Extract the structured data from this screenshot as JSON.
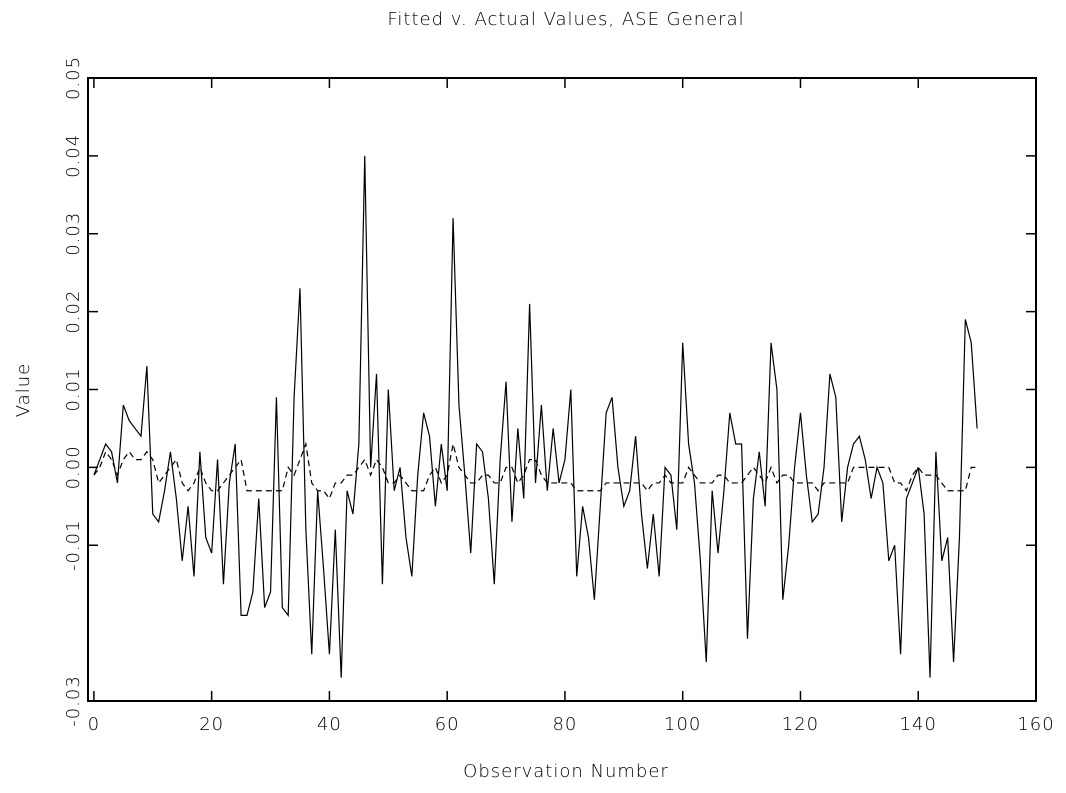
{
  "chart_data": {
    "type": "line",
    "title": "Fitted v. Actual Values, ASE General",
    "xlabel": "Observation Number",
    "ylabel": "Value",
    "x": [
      0,
      1,
      2,
      3,
      4,
      5,
      6,
      7,
      8,
      9,
      10,
      11,
      12,
      13,
      14,
      15,
      16,
      17,
      18,
      19,
      20,
      21,
      22,
      23,
      24,
      25,
      26,
      27,
      28,
      29,
      30,
      31,
      32,
      33,
      34,
      35,
      36,
      37,
      38,
      39,
      40,
      41,
      42,
      43,
      44,
      45,
      46,
      47,
      48,
      49,
      50,
      51,
      52,
      53,
      54,
      55,
      56,
      57,
      58,
      59,
      60,
      61,
      62,
      63,
      64,
      65,
      66,
      67,
      68,
      69,
      70,
      71,
      72,
      73,
      74,
      75,
      76,
      77,
      78,
      79,
      80,
      81,
      82,
      83,
      84,
      85,
      86,
      87,
      88,
      89,
      90,
      91,
      92,
      93,
      94,
      95,
      96,
      97,
      98,
      99,
      100,
      101,
      102,
      103,
      104,
      105,
      106,
      107,
      108,
      109,
      110,
      111,
      112,
      113,
      114,
      115,
      116,
      117,
      118,
      119,
      120,
      121,
      122,
      123,
      124,
      125,
      126,
      127,
      128,
      129,
      130,
      131,
      132,
      133,
      134,
      135,
      136,
      137,
      138,
      139,
      140,
      141,
      142,
      143,
      144,
      145,
      146,
      147,
      148,
      149,
      150
    ],
    "series": [
      {
        "color": "#000000",
        "dash": false,
        "values": [
          -0.001,
          0.001,
          0.003,
          0.002,
          -0.002,
          0.008,
          0.006,
          0.005,
          0.004,
          0.013,
          -0.006,
          -0.007,
          -0.003,
          0.002,
          -0.004,
          -0.012,
          -0.005,
          -0.014,
          0.002,
          -0.009,
          -0.011,
          0.001,
          -0.015,
          -0.002,
          0.003,
          -0.019,
          -0.019,
          -0.016,
          -0.004,
          -0.018,
          -0.016,
          0.009,
          -0.018,
          -0.019,
          0.009,
          0.023,
          -0.008,
          -0.024,
          -0.003,
          -0.013,
          -0.024,
          -0.008,
          -0.027,
          -0.003,
          -0.006,
          0.003,
          0.04,
          0.0,
          0.012,
          -0.015,
          0.01,
          -0.003,
          0.0,
          -0.009,
          -0.014,
          -0.001,
          0.007,
          0.004,
          -0.005,
          0.003,
          -0.003,
          0.032,
          0.008,
          -0.001,
          -0.011,
          0.003,
          0.002,
          -0.004,
          -0.015,
          0.001,
          0.011,
          -0.007,
          0.005,
          -0.004,
          0.021,
          -0.002,
          0.008,
          -0.003,
          0.005,
          -0.002,
          0.001,
          0.01,
          -0.014,
          -0.005,
          -0.009,
          -0.017,
          -0.005,
          0.007,
          0.009,
          0.0,
          -0.005,
          -0.003,
          0.004,
          -0.006,
          -0.013,
          -0.006,
          -0.014,
          0.0,
          -0.001,
          -0.008,
          0.016,
          0.003,
          -0.002,
          -0.012,
          -0.025,
          -0.003,
          -0.011,
          -0.003,
          0.007,
          0.003,
          0.003,
          -0.022,
          -0.004,
          0.002,
          -0.005,
          0.016,
          0.01,
          -0.017,
          -0.01,
          0.0,
          0.007,
          -0.001,
          -0.007,
          -0.006,
          0.0,
          0.012,
          0.009,
          -0.007,
          0.0,
          0.003,
          0.004,
          0.001,
          -0.004,
          0.0,
          -0.002,
          -0.012,
          -0.01,
          -0.024,
          -0.004,
          -0.002,
          0.0,
          -0.006,
          -0.027,
          0.002,
          -0.012,
          -0.009,
          -0.025,
          -0.009,
          0.019,
          0.016,
          0.005
        ]
      },
      {
        "color": "#000000",
        "dash": true,
        "values": [
          -0.001,
          0.0,
          0.002,
          0.001,
          -0.001,
          0.001,
          0.002,
          0.001,
          0.001,
          0.002,
          0.001,
          -0.002,
          -0.001,
          0.0,
          0.001,
          -0.002,
          -0.003,
          -0.002,
          0.0,
          -0.002,
          -0.003,
          -0.003,
          -0.002,
          -0.001,
          0.0,
          0.001,
          -0.003,
          -0.003,
          -0.003,
          -0.003,
          -0.003,
          -0.003,
          -0.003,
          0.0,
          -0.001,
          0.001,
          0.003,
          -0.002,
          -0.003,
          -0.003,
          -0.004,
          -0.002,
          -0.002,
          -0.001,
          -0.001,
          0.0,
          0.001,
          -0.001,
          0.001,
          0.0,
          -0.002,
          -0.002,
          -0.001,
          -0.002,
          -0.003,
          -0.003,
          -0.003,
          -0.001,
          0.0,
          -0.002,
          -0.001,
          0.003,
          0.0,
          -0.001,
          -0.002,
          -0.002,
          -0.001,
          -0.001,
          -0.002,
          -0.002,
          0.0,
          0.0,
          -0.002,
          -0.001,
          0.001,
          0.001,
          -0.001,
          -0.002,
          -0.002,
          -0.002,
          -0.002,
          -0.002,
          -0.003,
          -0.003,
          -0.003,
          -0.003,
          -0.003,
          -0.002,
          -0.002,
          -0.002,
          -0.002,
          -0.002,
          -0.002,
          -0.002,
          -0.003,
          -0.002,
          -0.002,
          -0.001,
          -0.002,
          -0.002,
          -0.002,
          0.0,
          -0.001,
          -0.002,
          -0.002,
          -0.002,
          -0.001,
          -0.001,
          -0.002,
          -0.002,
          -0.002,
          -0.001,
          0.0,
          -0.001,
          -0.002,
          0.0,
          -0.002,
          -0.001,
          -0.001,
          -0.002,
          -0.002,
          -0.002,
          -0.002,
          -0.003,
          -0.002,
          -0.002,
          -0.002,
          -0.002,
          -0.002,
          0.0,
          0.0,
          0.0,
          0.0,
          0.0,
          0.0,
          0.0,
          -0.002,
          -0.002,
          -0.003,
          -0.001,
          0.0,
          -0.001,
          -0.001,
          -0.001,
          -0.002,
          -0.003,
          -0.003,
          -0.003,
          -0.003,
          0.0,
          0.0
        ]
      }
    ],
    "xlim": [
      -1,
      160
    ],
    "ylim": [
      -0.03,
      0.05
    ],
    "xticks": [
      0,
      20,
      40,
      60,
      80,
      100,
      120,
      140,
      160
    ],
    "yticks": [
      {
        "value": -0.03,
        "label": "-0.03"
      },
      {
        "value": -0.01,
        "label": "-0.01"
      },
      {
        "value": 0,
        "label": "0.00"
      },
      {
        "value": 0.01,
        "label": "0.01"
      },
      {
        "value": 0.02,
        "label": "0.02"
      },
      {
        "value": 0.03,
        "label": "0.03"
      },
      {
        "value": 0.04,
        "label": "0.04"
      },
      {
        "value": 0.05,
        "label": "0.05"
      }
    ],
    "grid": false
  }
}
